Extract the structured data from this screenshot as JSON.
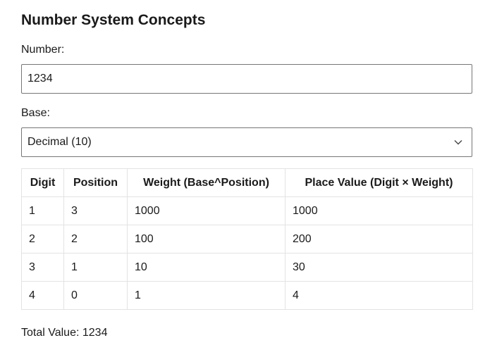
{
  "title": "Number System Concepts",
  "number": {
    "label": "Number:",
    "value": "1234"
  },
  "base": {
    "label": "Base:",
    "selected": "Decimal (10)"
  },
  "table": {
    "headers": [
      "Digit",
      "Position",
      "Weight (Base^Position)",
      "Place Value (Digit × Weight)"
    ],
    "rows": [
      [
        "1",
        "3",
        "1000",
        "1000"
      ],
      [
        "2",
        "2",
        "100",
        "200"
      ],
      [
        "3",
        "1",
        "10",
        "30"
      ],
      [
        "4",
        "0",
        "1",
        "4"
      ]
    ]
  },
  "total": {
    "text": "Total Value: 1234"
  },
  "icons": {
    "base_select": "chevron-down-icon"
  },
  "colors": {
    "text": "#1a1a1a",
    "input_border": "#767676",
    "table_border": "#e3e3e3"
  }
}
